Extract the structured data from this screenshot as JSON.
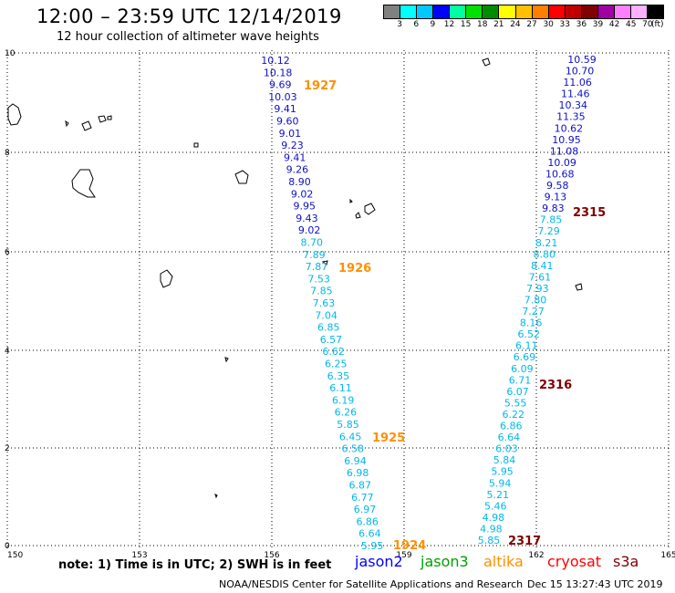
{
  "header": {
    "title": "12:00 – 23:59 UTC 12/14/2019",
    "subtitle": "12 hour collection of altimeter wave heights"
  },
  "colorbar": {
    "colors": [
      "#808080",
      "#00ffff",
      "#00c8ff",
      "#0000ff",
      "#00ffa0",
      "#00e000",
      "#008c00",
      "#ffff00",
      "#ffc000",
      "#ff8000",
      "#ff0000",
      "#c00000",
      "#800000",
      "#a000a0",
      "#ff80ff",
      "#ffb0ff",
      "#000000"
    ],
    "ticks": [
      "3",
      "6",
      "9",
      "12",
      "15",
      "18",
      "21",
      "24",
      "27",
      "30",
      "33",
      "36",
      "39",
      "42",
      "45",
      "70"
    ],
    "unit": "(ft)"
  },
  "axes": {
    "x_ticks": [
      "150",
      "153",
      "156",
      "159",
      "162",
      "165"
    ],
    "y_ticks": [
      "0",
      "2",
      "4",
      "6",
      "8",
      "10"
    ]
  },
  "tracks": {
    "left": [
      "10.12",
      "10.18",
      "9.69",
      "10.03",
      "9.41",
      "9.60",
      "9.01",
      "9.23",
      "9.41",
      "9.26",
      "8.90",
      "9.02",
      "9.95",
      "9.43",
      "9.02",
      "8.70",
      "7.89",
      "7.87",
      "7.53",
      "7.85",
      "7.63",
      "7.04",
      "6.85",
      "6.57",
      "6.62",
      "6.25",
      "6.35",
      "6.11",
      "6.19",
      "6.26",
      "5.85",
      "6.45",
      "6.58",
      "6.94",
      "6.98",
      "6.87",
      "6.77",
      "6.97",
      "6.86",
      "6.64",
      "5.95"
    ],
    "right": [
      "10.59",
      "10.70",
      "11.06",
      "11.46",
      "10.34",
      "11.35",
      "10.62",
      "10.95",
      "11.08",
      "10.09",
      "10.68",
      "9.58",
      "9.13",
      "9.83",
      "7.85",
      "7.29",
      "8.21",
      "8.80",
      "8.41",
      "7.61",
      "7.93",
      "7.80",
      "7.27",
      "8.16",
      "6.52",
      "6.11",
      "6.69",
      "6.09",
      "6.71",
      "6.07",
      "5.55",
      "6.22",
      "6.86",
      "6.64",
      "6.03",
      "5.84",
      "5.95",
      "5.94",
      "5.21",
      "5.46",
      "4.98",
      "4.98",
      "5.85"
    ]
  },
  "times": {
    "t1927": "1927",
    "t1926": "1926",
    "t1925": "1925",
    "t1924": "1924",
    "t2315": "2315",
    "t2316": "2316",
    "t2317": "2317"
  },
  "footer": {
    "note": "note: 1) Time is in UTC; 2) SWH is in feet",
    "legend": {
      "jason2": "jason2",
      "jason3": "jason3",
      "altika": "altika",
      "cryosat": "cryosat",
      "s3a": "s3a"
    },
    "credit": "NOAA/NESDIS Center for Satellite Applications and Research",
    "timestamp": "Dec 15 13:27:43 UTC 2019"
  },
  "colors": {
    "blue_label": "#1010c8",
    "cyan_label": "#00b8e8",
    "time_orange": "#ff9000",
    "time_maroon": "#800000",
    "jason2": "#0000ff",
    "jason3": "#00a000",
    "altika": "#ff9000",
    "cryosat": "#ff0000",
    "s3a": "#800000"
  }
}
